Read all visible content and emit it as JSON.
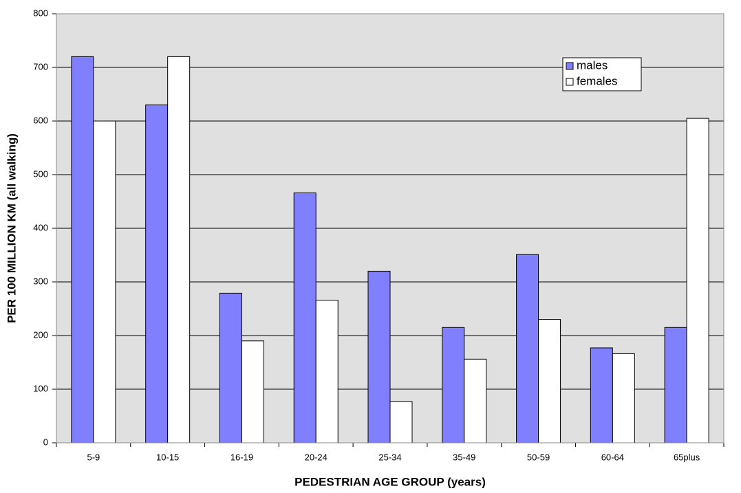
{
  "chart_data": {
    "type": "bar",
    "x_label": "PEDESTRIAN AGE GROUP (years)",
    "y_label": "PER 100 MILLION KM (all walking)",
    "categories": [
      "5-9",
      "10-15",
      "16-19",
      "20-24",
      "25-34",
      "35-49",
      "50-59",
      "60-64",
      "65plus"
    ],
    "series": [
      {
        "name": "males",
        "color": "#8080ff",
        "values": [
          720,
          630,
          279,
          466,
          320,
          215,
          351,
          177,
          215
        ]
      },
      {
        "name": "females",
        "color": "#ffffff",
        "values": [
          600,
          720,
          190,
          266,
          77,
          156,
          230,
          166,
          605
        ]
      }
    ],
    "ylim": [
      0,
      800
    ],
    "yticks": [
      0,
      100,
      200,
      300,
      400,
      500,
      600,
      700,
      800
    ],
    "grid": true,
    "legend": "top-right"
  }
}
